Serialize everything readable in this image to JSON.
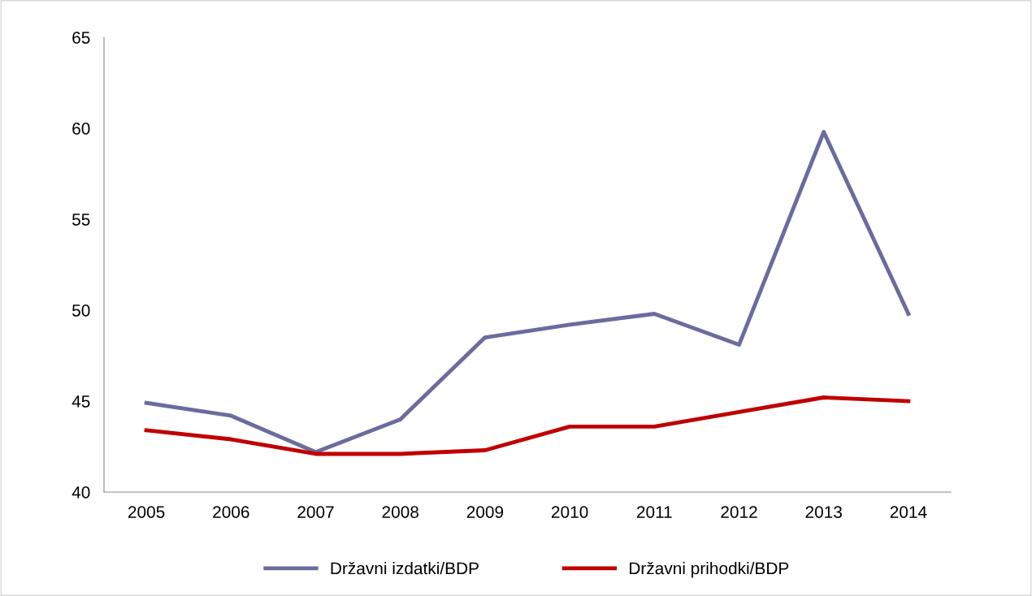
{
  "chart_data": {
    "type": "line",
    "categories": [
      "2005",
      "2006",
      "2007",
      "2008",
      "2009",
      "2010",
      "2011",
      "2012",
      "2013",
      "2014"
    ],
    "series": [
      {
        "name": "Državni izdatki/BDP",
        "color": "#6b6b9e",
        "values": [
          44.9,
          44.2,
          42.2,
          44.0,
          48.5,
          49.2,
          49.8,
          48.1,
          59.8,
          49.8
        ]
      },
      {
        "name": "Državni prihodki/BDP",
        "color": "#c00000",
        "values": [
          43.4,
          42.9,
          42.1,
          42.1,
          42.3,
          43.6,
          43.6,
          44.4,
          45.2,
          45.0
        ]
      }
    ],
    "ylim": [
      40,
      65
    ],
    "yticks": [
      40,
      45,
      50,
      55,
      60,
      65
    ],
    "grid": false,
    "legend": "bottom",
    "marker": "none",
    "line_style": "solid"
  }
}
